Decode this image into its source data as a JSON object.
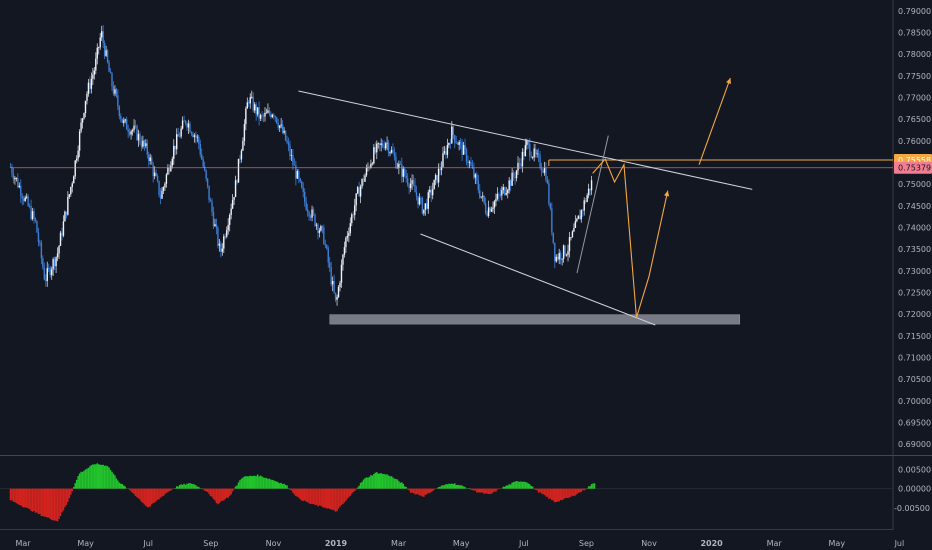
{
  "chart_data": {
    "type": "candlestick",
    "instrument_note": "",
    "price_axis": {
      "ylim": [
        0.6875,
        0.7925
      ],
      "tick_labels": [
        "0.79000",
        "0.78500",
        "0.78000",
        "0.77500",
        "0.77000",
        "0.76500",
        "0.76000",
        "0.75500",
        "0.75000",
        "0.74500",
        "0.74000",
        "0.73500",
        "0.73000",
        "0.72500",
        "0.72000",
        "0.71500",
        "0.71000",
        "0.70500",
        "0.70000",
        "0.69500",
        "0.69000"
      ],
      "tick_values": [
        0.79,
        0.785,
        0.78,
        0.775,
        0.77,
        0.765,
        0.76,
        0.755,
        0.75,
        0.745,
        0.74,
        0.735,
        0.73,
        0.725,
        0.72,
        0.715,
        0.71,
        0.705,
        0.7,
        0.695,
        0.69
      ],
      "price_tags": [
        {
          "label": "0.75558",
          "value": 0.75558,
          "color": "#f5a742"
        },
        {
          "label": "0.75379",
          "value": 0.75379,
          "color": "#f57b8f"
        }
      ]
    },
    "time_axis": {
      "tick_labels": [
        "Mar",
        "May",
        "Jul",
        "Sep",
        "Nov",
        "2019",
        "Mar",
        "May",
        "Jul",
        "Sep",
        "Nov",
        "2020",
        "Mar",
        "May",
        "Jul"
      ],
      "tick_index": [
        0,
        1,
        2,
        3,
        4,
        5,
        6,
        7,
        8,
        9,
        10,
        11,
        12,
        13,
        14
      ],
      "bold": [
        false,
        false,
        false,
        false,
        false,
        true,
        false,
        false,
        false,
        false,
        false,
        true,
        false,
        false,
        false
      ],
      "xlim": [
        -0.2,
        13.95
      ]
    },
    "candles_close_path": [
      [
        -0.2,
        0.754
      ],
      [
        0.2,
        0.741
      ],
      [
        0.35,
        0.728
      ],
      [
        0.55,
        0.734
      ],
      [
        0.8,
        0.752
      ],
      [
        1.0,
        0.77
      ],
      [
        1.15,
        0.777
      ],
      [
        1.25,
        0.785
      ],
      [
        1.4,
        0.774
      ],
      [
        1.6,
        0.764
      ],
      [
        1.8,
        0.762
      ],
      [
        2.0,
        0.757
      ],
      [
        2.2,
        0.747
      ],
      [
        2.4,
        0.758
      ],
      [
        2.6,
        0.765
      ],
      [
        2.8,
        0.76
      ],
      [
        3.0,
        0.745
      ],
      [
        3.15,
        0.734
      ],
      [
        3.4,
        0.75
      ],
      [
        3.6,
        0.77
      ],
      [
        3.8,
        0.765
      ],
      [
        4.0,
        0.767
      ],
      [
        4.2,
        0.76
      ],
      [
        4.5,
        0.746
      ],
      [
        4.8,
        0.738
      ],
      [
        5.0,
        0.722
      ],
      [
        5.15,
        0.737
      ],
      [
        5.35,
        0.748
      ],
      [
        5.6,
        0.757
      ],
      [
        5.8,
        0.76
      ],
      [
        6.0,
        0.754
      ],
      [
        6.2,
        0.75
      ],
      [
        6.4,
        0.744
      ],
      [
        6.6,
        0.751
      ],
      [
        6.85,
        0.762
      ],
      [
        7.1,
        0.756
      ],
      [
        7.4,
        0.744
      ],
      [
        7.6,
        0.747
      ],
      [
        7.85,
        0.752
      ],
      [
        8.05,
        0.759
      ],
      [
        8.35,
        0.753
      ],
      [
        8.5,
        0.733
      ],
      [
        8.7,
        0.735
      ],
      [
        8.95,
        0.745
      ],
      [
        9.1,
        0.751
      ]
    ],
    "oscillator": {
      "tick_labels": [
        "0.00500",
        "0.00000",
        "-0.00500"
      ],
      "tick_values": [
        0.005,
        0.0,
        -0.005
      ],
      "ylim": [
        -0.0105,
        0.0085
      ],
      "points": [
        [
          -0.2,
          -0.003
        ],
        [
          0.3,
          -0.007
        ],
        [
          0.55,
          -0.0085
        ],
        [
          0.7,
          -0.004
        ],
        [
          0.9,
          0.004
        ],
        [
          1.15,
          0.0065
        ],
        [
          1.35,
          0.006
        ],
        [
          1.55,
          0.0015
        ],
        [
          1.75,
          -0.001
        ],
        [
          2.0,
          -0.005
        ],
        [
          2.3,
          -0.001
        ],
        [
          2.5,
          0.0009
        ],
        [
          2.7,
          0.0014
        ],
        [
          2.95,
          -0.0008
        ],
        [
          3.1,
          -0.004
        ],
        [
          3.3,
          -0.002
        ],
        [
          3.5,
          0.003
        ],
        [
          3.75,
          0.0035
        ],
        [
          3.95,
          0.0025
        ],
        [
          4.2,
          0.001
        ],
        [
          4.4,
          -0.0025
        ],
        [
          4.6,
          -0.004
        ],
        [
          4.85,
          -0.005
        ],
        [
          5.0,
          -0.006
        ],
        [
          5.25,
          -0.0015
        ],
        [
          5.45,
          0.0025
        ],
        [
          5.65,
          0.0042
        ],
        [
          5.85,
          0.0035
        ],
        [
          6.05,
          0.0015
        ],
        [
          6.2,
          -0.001
        ],
        [
          6.4,
          -0.002
        ],
        [
          6.65,
          0.0005
        ],
        [
          6.85,
          0.0015
        ],
        [
          7.05,
          0.0005
        ],
        [
          7.25,
          -0.0008
        ],
        [
          7.45,
          -0.0016
        ],
        [
          7.65,
          0.0002
        ],
        [
          7.9,
          0.002
        ],
        [
          8.05,
          0.0018
        ],
        [
          8.2,
          -0.0005
        ],
        [
          8.5,
          -0.0035
        ],
        [
          8.75,
          -0.0022
        ],
        [
          8.95,
          -0.0005
        ],
        [
          9.15,
          0.0018
        ]
      ],
      "positive_color": "#22c42b",
      "negative_color": "#d3231e"
    },
    "drawings": {
      "upper_trendline": {
        "x": [
          4.4,
          11.65
        ],
        "y": [
          0.7715,
          0.7488
        ],
        "color": "#d1d4dc"
      },
      "lower_trendline": {
        "x": [
          6.35,
          10.1
        ],
        "y": [
          0.7385,
          0.7175
        ],
        "color": "#d1d4dc"
      },
      "support_zone": {
        "x": [
          4.9,
          11.45
        ],
        "y": [
          0.7177,
          0.7192
        ],
        "color": "#787b86"
      },
      "resistance_line": {
        "x": [
          8.4,
          13.95
        ],
        "y": [
          0.75558,
          0.75558
        ],
        "color": "#f5a742"
      },
      "current_price_line": {
        "x": [
          -0.2,
          13.95
        ],
        "y": [
          0.75379,
          0.75379
        ],
        "color": "#f57b8f"
      },
      "rising_channel": {
        "x": [
          8.85,
          9.35
        ],
        "y": [
          0.7295,
          0.7612
        ],
        "color": "#9598a1"
      },
      "projection_path": {
        "x": [
          9.1,
          9.3,
          9.45,
          9.6,
          9.8,
          10.0,
          10.3
        ],
        "y": [
          0.7525,
          0.7558,
          0.7505,
          0.7545,
          0.7192,
          0.7287,
          0.7485
        ],
        "color": "#f5a742"
      },
      "breakout_arrow": {
        "x": [
          10.8,
          11.3
        ],
        "y": [
          0.7545,
          0.7745
        ],
        "color": "#f5a742"
      }
    },
    "grid": false,
    "legend": "none"
  }
}
